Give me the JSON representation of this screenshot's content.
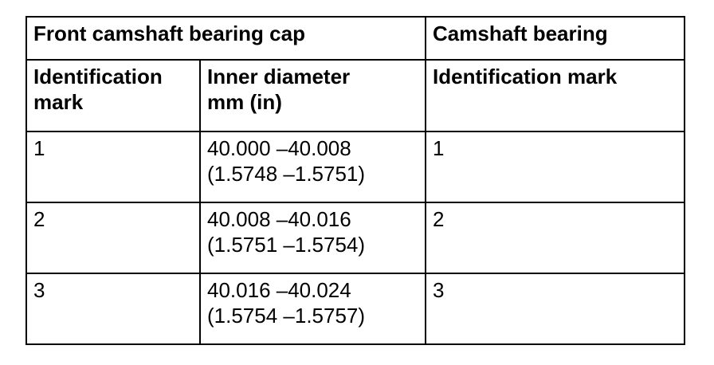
{
  "table": {
    "header_row1": {
      "group_left": "Front camshaft bearing cap",
      "group_right": "Camshaft bearing"
    },
    "header_row2": {
      "col1_line1": "Identification",
      "col1_line2": "mark",
      "col2_line1": "Inner diameter",
      "col2_line2": "mm (in)",
      "col3": "Identification mark"
    },
    "rows": [
      {
        "cap_mark": "1",
        "diameter_mm": "40.000 –40.008",
        "diameter_in": "(1.5748 –1.5751)",
        "bearing_mark": "1"
      },
      {
        "cap_mark": "2",
        "diameter_mm": "40.008 –40.016",
        "diameter_in": "(1.5751 –1.5754)",
        "bearing_mark": "2"
      },
      {
        "cap_mark": "3",
        "diameter_mm": "40.016 –40.024",
        "diameter_in": "(1.5754 –1.5757)",
        "bearing_mark": "3"
      }
    ]
  }
}
